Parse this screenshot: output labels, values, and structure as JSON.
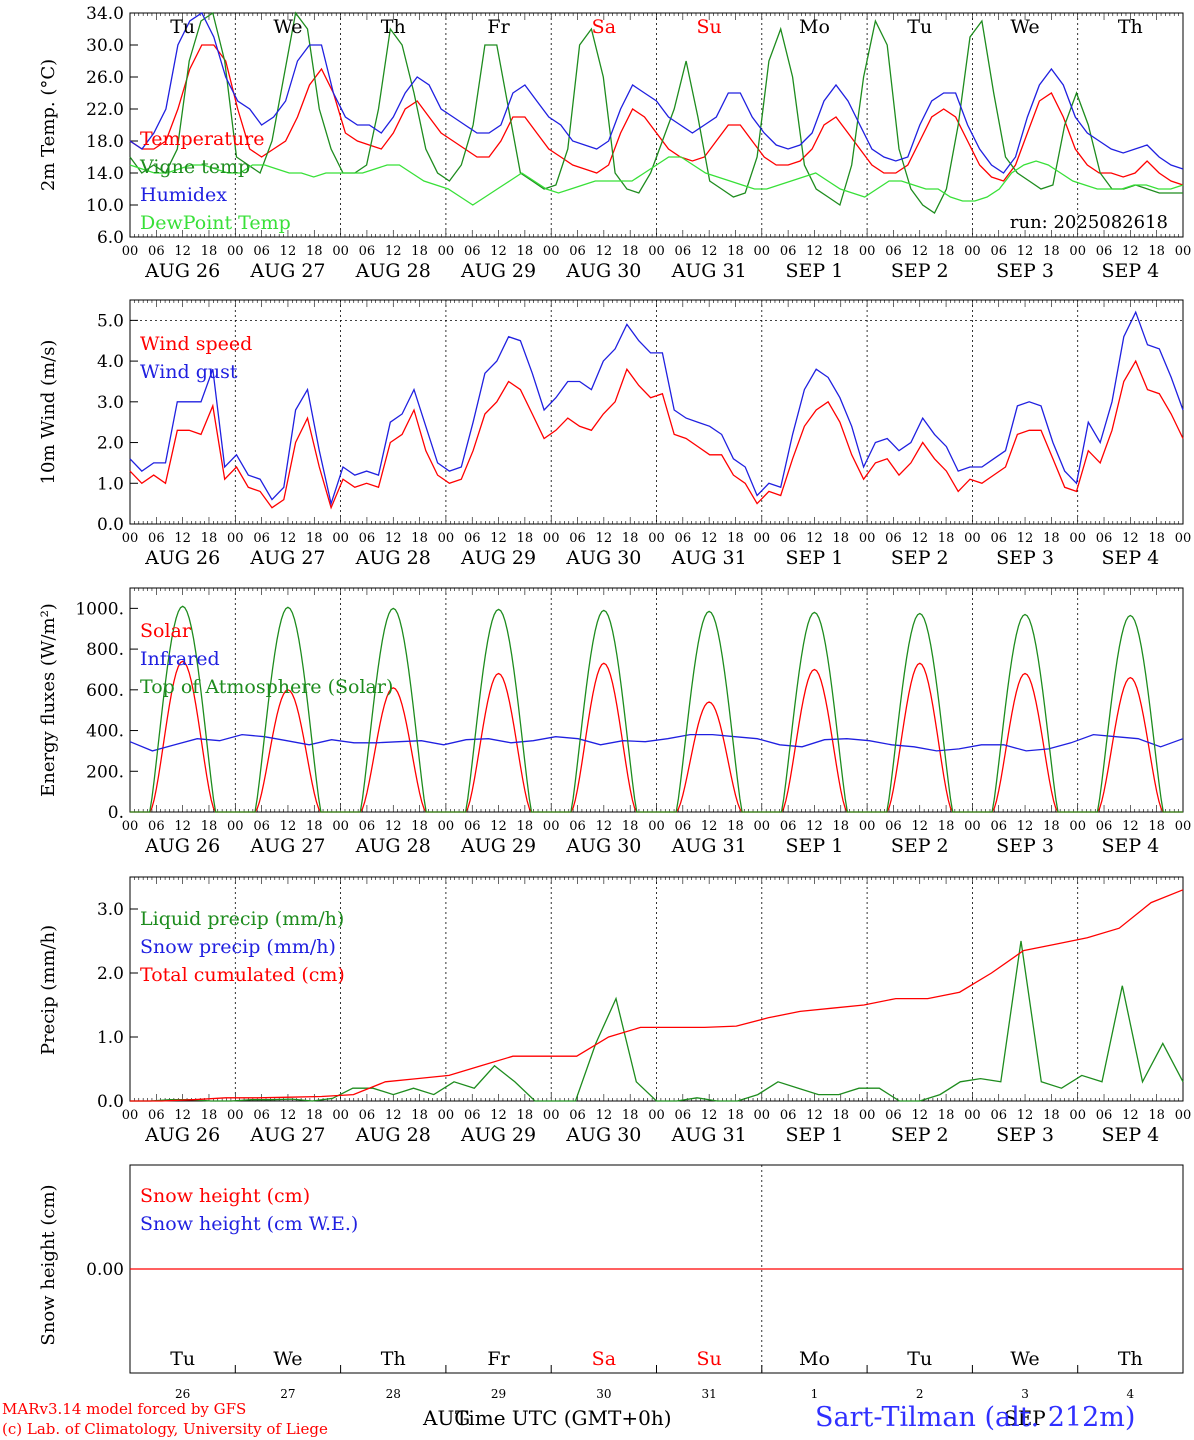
{
  "days": [
    "26",
    "27",
    "28",
    "29",
    "30",
    "31",
    "1",
    "2",
    "3",
    "4"
  ],
  "day_labels": [
    "AUG 26",
    "AUG 27",
    "AUG 28",
    "AUG 29",
    "AUG 30",
    "AUG 31",
    "SEP  1",
    "SEP  2",
    "SEP  3",
    "SEP  4"
  ],
  "weekdays": [
    {
      "name": "Tu",
      "color": "#000000"
    },
    {
      "name": "We",
      "color": "#000000"
    },
    {
      "name": "Th",
      "color": "#000000"
    },
    {
      "name": "Fr",
      "color": "#000000"
    },
    {
      "name": "Sa",
      "color": "#ff0000"
    },
    {
      "name": "Su",
      "color": "#ff0000"
    },
    {
      "name": "Mo",
      "color": "#000000"
    },
    {
      "name": "Tu",
      "color": "#000000"
    },
    {
      "name": "We",
      "color": "#000000"
    },
    {
      "name": "Th",
      "color": "#000000"
    }
  ],
  "hour_ticks": [
    "00",
    "06",
    "12",
    "18"
  ],
  "colors": {
    "red": "#ff0000",
    "green": "#1e8c1e",
    "blue": "#2020e0",
    "lightgreen": "#38e038"
  },
  "footer": {
    "credit1": "MARv3.14 model forced by GFS",
    "credit2": "(c) Lab. of Climatology, University of Liege",
    "station": "Sart-Tilman (alt. 212m)",
    "xtitle": "Time UTC (GMT+0h)",
    "month1": "AUG",
    "month2": "SEP"
  },
  "chart_data": [
    {
      "type": "line",
      "ylabel": "2m Temp. (°C)",
      "ylim": [
        6.0,
        34.0
      ],
      "yticks": [
        "6.0",
        "10.0",
        "14.0",
        "18.0",
        "22.0",
        "26.0",
        "30.0",
        "34.0"
      ],
      "annotation": "run: 2025082618",
      "series": [
        {
          "name": "Temperature",
          "color": "#ff0000",
          "y": [
            18,
            17,
            17,
            18,
            22,
            27,
            30,
            30,
            28,
            22,
            17,
            16,
            17,
            18,
            21,
            25,
            27,
            24,
            19,
            18,
            17.5,
            17,
            19,
            22,
            23,
            21,
            19,
            18,
            17,
            16,
            16,
            18,
            21,
            21,
            19,
            17,
            16,
            15,
            14.5,
            14,
            15,
            19,
            22,
            21,
            19,
            17,
            16,
            15.5,
            16,
            18,
            20,
            20,
            18,
            16,
            15,
            15,
            15.5,
            17,
            20,
            21,
            19,
            17,
            15,
            14,
            14,
            15,
            18,
            21,
            22,
            21,
            18,
            15,
            13.5,
            13,
            15,
            19,
            23,
            24,
            21,
            17,
            15,
            14,
            14,
            13.5,
            14,
            15.5,
            14,
            13,
            12.5
          ]
        },
        {
          "name": "Vigne temp",
          "color": "#1e8c1e",
          "y": [
            16,
            14,
            15,
            14,
            17,
            28,
            33,
            34,
            28,
            16,
            15,
            14,
            18,
            26,
            34,
            32,
            22,
            17,
            14,
            14,
            15,
            22,
            32,
            30,
            24,
            17,
            14,
            13,
            15,
            20,
            30,
            30,
            22,
            14,
            13,
            12,
            12.5,
            17,
            30,
            32,
            26,
            14,
            12,
            11.5,
            14,
            18,
            22,
            28,
            21,
            13,
            12,
            11,
            11.5,
            16,
            28,
            32,
            26,
            15,
            12,
            11,
            10,
            15,
            26,
            33,
            30,
            17,
            12,
            10,
            9,
            12,
            20,
            31,
            33,
            24,
            16,
            14,
            13,
            12,
            12.5,
            20,
            24,
            20,
            14,
            12,
            12,
            12.5,
            12,
            11.5,
            11.5,
            11.5
          ]
        },
        {
          "name": "Humidex",
          "color": "#2020e0",
          "y": [
            18,
            17,
            19,
            22,
            30,
            33,
            34,
            31,
            26,
            23,
            22,
            20,
            21,
            23,
            28,
            30,
            30,
            24,
            21,
            20,
            20,
            19,
            21,
            24,
            26,
            25,
            22,
            21,
            20,
            19,
            19,
            20,
            24,
            25,
            23,
            21,
            20,
            18,
            17.5,
            17,
            18,
            22,
            25,
            24,
            23,
            21,
            20,
            19,
            20,
            21,
            24,
            24,
            21,
            19,
            17.5,
            17,
            17.5,
            19,
            23,
            25,
            23,
            20,
            17,
            16,
            15.5,
            16,
            20,
            23,
            24,
            24,
            20,
            17,
            15,
            14,
            16,
            21,
            25,
            27,
            25,
            21,
            19,
            18,
            17,
            16.5,
            17,
            17.5,
            16,
            15,
            14.5
          ]
        },
        {
          "name": "DewPoint Temp",
          "color": "#38e038",
          "y": [
            15,
            14.5,
            14,
            14,
            14.5,
            15,
            15,
            14.5,
            14,
            14,
            15,
            15,
            14.5,
            14,
            14,
            13.5,
            14,
            14,
            14,
            14,
            14.5,
            15,
            15,
            14,
            13,
            12.5,
            12,
            11,
            10,
            11,
            12,
            13,
            14,
            13,
            12,
            11.5,
            12,
            12.5,
            13,
            13,
            13,
            13,
            14,
            15,
            16,
            16,
            15,
            14,
            13.5,
            13,
            12.5,
            12,
            12,
            12.5,
            13,
            13.5,
            14,
            13,
            12,
            11.5,
            11,
            12,
            13,
            13,
            12.5,
            12,
            12,
            11,
            10.5,
            10.5,
            11,
            12,
            14,
            15,
            15.5,
            15,
            14,
            13,
            12.5,
            12,
            12,
            12,
            12.5,
            12.5,
            12,
            12,
            12.5
          ]
        }
      ],
      "legend": [
        "Temperature",
        "Vigne temp",
        "Humidex",
        "DewPoint Temp"
      ]
    },
    {
      "type": "line",
      "ylabel": "10m Wind (m/s)",
      "ylim": [
        0,
        5.5
      ],
      "yticks": [
        "0.0",
        "1.0",
        "2.0",
        "3.0",
        "4.0",
        "5.0"
      ],
      "series": [
        {
          "name": "Wind speed",
          "color": "#ff0000",
          "y": [
            1.3,
            1.0,
            1.2,
            1.0,
            2.3,
            2.3,
            2.2,
            2.9,
            1.1,
            1.4,
            0.9,
            0.8,
            0.4,
            0.6,
            2.0,
            2.6,
            1.4,
            0.4,
            1.1,
            0.9,
            1.0,
            0.9,
            2.0,
            2.2,
            2.8,
            1.8,
            1.2,
            1.0,
            1.1,
            1.8,
            2.7,
            3.0,
            3.5,
            3.3,
            2.7,
            2.1,
            2.3,
            2.6,
            2.4,
            2.3,
            2.7,
            3.0,
            3.8,
            3.4,
            3.1,
            3.2,
            2.2,
            2.1,
            1.9,
            1.7,
            1.7,
            1.2,
            1.0,
            0.5,
            0.8,
            0.7,
            1.6,
            2.4,
            2.8,
            3.0,
            2.5,
            1.7,
            1.1,
            1.5,
            1.6,
            1.2,
            1.5,
            2.0,
            1.6,
            1.3,
            0.8,
            1.1,
            1.0,
            1.2,
            1.4,
            2.2,
            2.3,
            2.3,
            1.6,
            0.9,
            0.8,
            1.8,
            1.5,
            2.3,
            3.5,
            4.0,
            3.3,
            3.2,
            2.7,
            2.1
          ]
        },
        {
          "name": "Wind gust",
          "color": "#2020e0",
          "y": [
            1.6,
            1.3,
            1.5,
            1.5,
            3.0,
            3.0,
            3.0,
            3.8,
            1.4,
            1.7,
            1.2,
            1.1,
            0.6,
            0.9,
            2.8,
            3.3,
            1.8,
            0.5,
            1.4,
            1.2,
            1.3,
            1.2,
            2.5,
            2.7,
            3.3,
            2.4,
            1.5,
            1.3,
            1.4,
            2.5,
            3.7,
            4.0,
            4.6,
            4.5,
            3.7,
            2.8,
            3.1,
            3.5,
            3.5,
            3.3,
            4.0,
            4.3,
            4.9,
            4.5,
            4.2,
            4.2,
            2.8,
            2.6,
            2.5,
            2.4,
            2.2,
            1.6,
            1.4,
            0.7,
            1.0,
            0.9,
            2.2,
            3.3,
            3.8,
            3.6,
            3.1,
            2.4,
            1.4,
            2.0,
            2.1,
            1.8,
            2.0,
            2.6,
            2.2,
            1.9,
            1.3,
            1.4,
            1.4,
            1.6,
            1.8,
            2.9,
            3.0,
            2.9,
            2.0,
            1.3,
            1.0,
            2.5,
            2.0,
            3.0,
            4.6,
            5.2,
            4.4,
            4.3,
            3.6,
            2.8
          ]
        }
      ],
      "legend": [
        "Wind speed",
        "Wind gust"
      ]
    },
    {
      "type": "line",
      "ylabel": "Energy fluxes (W/m²)",
      "ylim": [
        0,
        1100
      ],
      "yticks": [
        "0.",
        "200.",
        "400.",
        "600.",
        "800.",
        "1000."
      ],
      "series": [
        {
          "name": "Solar",
          "color": "#ff0000",
          "peaks": [
            740,
            600,
            610,
            680,
            730,
            540,
            700,
            730,
            680,
            660
          ],
          "y": []
        },
        {
          "name": "Infrared",
          "color": "#2020e0",
          "y": [
            345,
            300,
            330,
            360,
            350,
            380,
            370,
            350,
            330,
            355,
            340,
            340,
            345,
            350,
            330,
            355,
            360,
            340,
            350,
            370,
            360,
            330,
            350,
            345,
            360,
            380,
            380,
            370,
            360,
            330,
            320,
            355,
            360,
            350,
            330,
            320,
            300,
            310,
            330,
            330,
            300,
            310,
            340,
            380,
            370,
            360,
            320,
            360
          ]
        },
        {
          "name": "Top of Atmosphere (Solar)",
          "color": "#1e8c1e",
          "peaks": [
            1010,
            1005,
            1000,
            995,
            990,
            985,
            980,
            975,
            970,
            965
          ],
          "y": []
        }
      ],
      "legend": [
        "Solar",
        "Infrared",
        "Top of Atmosphere (Solar)"
      ]
    },
    {
      "type": "line",
      "ylabel": "Precip (mm/h)",
      "ylim": [
        0,
        3.5
      ],
      "yticks": [
        "0.0",
        "1.0",
        "2.0",
        "3.0"
      ],
      "series": [
        {
          "name": "Liquid precip (mm/h)",
          "color": "#1e8c1e",
          "y": [
            0,
            0,
            0.02,
            0.02,
            0,
            0,
            0.02,
            0.02,
            0.03,
            0,
            0.04,
            0.2,
            0.2,
            0.1,
            0.2,
            0.1,
            0.3,
            0.2,
            0.55,
            0.3,
            0,
            0,
            0,
            0.9,
            1.6,
            0.3,
            0,
            0,
            0.05,
            0,
            0,
            0.1,
            0.3,
            0.2,
            0.1,
            0.1,
            0.2,
            0.2,
            0,
            0,
            0.1,
            0.3,
            0.35,
            0.3,
            2.5,
            0.3,
            0.2,
            0.4,
            0.3,
            1.8,
            0.3,
            0.9,
            0.3
          ]
        },
        {
          "name": "Snow precip (mm/h)",
          "color": "#2020e0",
          "y": []
        },
        {
          "name": "Total cumulated (cm)",
          "color": "#ff0000",
          "y": [
            0,
            0,
            0.02,
            0.05,
            0.05,
            0.06,
            0.07,
            0.1,
            0.3,
            0.35,
            0.4,
            0.55,
            0.7,
            0.7,
            0.7,
            1.0,
            1.15,
            1.15,
            1.15,
            1.17,
            1.3,
            1.4,
            1.45,
            1.5,
            1.6,
            1.6,
            1.7,
            2.0,
            2.35,
            2.45,
            2.55,
            2.7,
            3.1,
            3.3
          ]
        }
      ],
      "legend": [
        "Liquid precip (mm/h)",
        "Snow precip (mm/h)",
        "Total cumulated (cm)"
      ]
    },
    {
      "type": "line",
      "ylabel": "Snow height (cm)",
      "yticks": [
        "0.00"
      ],
      "series": [
        {
          "name": "Snow height (cm)",
          "color": "#ff0000",
          "y": [
            0,
            0
          ]
        },
        {
          "name": "Snow height (cm W.E.)",
          "color": "#2020e0",
          "y": []
        }
      ],
      "legend": [
        "Snow height (cm)",
        "Snow height (cm W.E.)"
      ]
    }
  ]
}
